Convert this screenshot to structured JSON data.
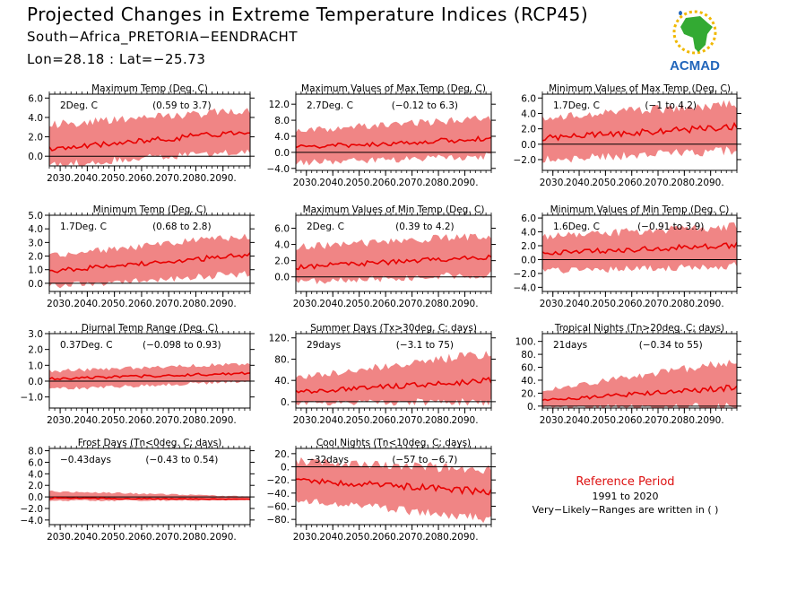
{
  "header": {
    "title": "Projected Changes in Extreme Temperature Indices (RCP45)",
    "subtitle": "South−Africa_PRETORIA−EENDRACHT",
    "coords": "Lon=28.18 : Lat=−25.73"
  },
  "logo": {
    "text": "ACMAD",
    "icon": "africa-map-icon"
  },
  "reference": {
    "title": "Reference Period",
    "years": "1991 to 2020",
    "note": "Very−Likely−Ranges are written in ( )"
  },
  "colors": {
    "band": "#f08585",
    "line": "#e80000",
    "accent": "#dd1111",
    "logo_blue": "#2266bb",
    "logo_green": "#33aa33",
    "logo_yellow": "#f0b800"
  },
  "chart_data": [
    {
      "type": "area",
      "title": "Maximum Temp (Deg. C)",
      "value_text": "2Deg. C",
      "range_text": "(0.59 to 3.7)",
      "xticks": [
        "2030.",
        "2040.",
        "2050.",
        "2060.",
        "2070.",
        "2080.",
        "2090."
      ],
      "xlim": [
        2026,
        2100
      ],
      "yticks": [
        "0.0",
        "2.0",
        "4.0",
        "6.0"
      ],
      "ylim": [
        -1.0,
        6.4
      ],
      "series": [
        {
          "start": 0.7,
          "end": 2.6,
          "lower_start": -0.5,
          "lower_end": 1.0,
          "upper_start": 2.8,
          "upper_end": 4.3
        }
      ]
    },
    {
      "type": "area",
      "title": "Maximum Values of Max Temp (Deg. C)",
      "value_text": "2.7Deg. C",
      "range_text": "(−0.12 to 6.3)",
      "xticks": [
        "2030.",
        "2040.",
        "2050.",
        "2060.",
        "2070.",
        "2080.",
        "2090."
      ],
      "xlim": [
        2026,
        2100
      ],
      "yticks": [
        "−4.0",
        "0.0",
        "4.0",
        "8.0",
        "12.0"
      ],
      "ylim": [
        -4.5,
        14.5
      ],
      "series": [
        {
          "start": 1.2,
          "end": 3.4,
          "lower_start": -1.8,
          "lower_end": 0.0,
          "upper_start": 4.5,
          "upper_end": 7.5
        }
      ]
    },
    {
      "type": "area",
      "title": "Minimum Values of Max Temp (Deg. C)",
      "value_text": "1.7Deg. C",
      "range_text": "(−1 to 4.2)",
      "xticks": [
        "2030.",
        "2040.",
        "2050.",
        "2060.",
        "2070.",
        "2080.",
        "2090."
      ],
      "xlim": [
        2026,
        2100
      ],
      "yticks": [
        "−2.0",
        "0.0",
        "2.0",
        "4.0",
        "6.0"
      ],
      "ylim": [
        -3.4,
        6.5
      ],
      "series": [
        {
          "start": 0.8,
          "end": 2.3,
          "lower_start": -1.5,
          "lower_end": -0.2,
          "upper_start": 2.8,
          "upper_end": 4.6
        }
      ]
    },
    {
      "type": "area",
      "title": "Minimum Temp (Deg. C)",
      "value_text": "1.7Deg. C",
      "range_text": "(0.68 to 2.8)",
      "xticks": [
        "2030.",
        "2040.",
        "2050.",
        "2060.",
        "2070.",
        "2080.",
        "2090."
      ],
      "xlim": [
        2026,
        2100
      ],
      "yticks": [
        "0.0",
        "1.0",
        "2.0",
        "3.0",
        "4.0",
        "5.0"
      ],
      "ylim": [
        -0.6,
        5.0
      ],
      "series": [
        {
          "start": 0.9,
          "end": 2.1,
          "lower_start": 0.0,
          "lower_end": 1.0,
          "upper_start": 1.8,
          "upper_end": 3.2
        }
      ]
    },
    {
      "type": "area",
      "title": "Maximum Values of Min Temp (Deg. C)",
      "value_text": "2Deg. C",
      "range_text": "(0.39 to 4.2)",
      "xticks": [
        "2030.",
        "2040.",
        "2050.",
        "2060.",
        "2070.",
        "2080.",
        "2090."
      ],
      "xlim": [
        2026,
        2100
      ],
      "yticks": [
        "0.0",
        "2.0",
        "4.0",
        "6.0"
      ],
      "ylim": [
        -1.8,
        7.6
      ],
      "series": [
        {
          "start": 1.2,
          "end": 2.5,
          "lower_start": -0.2,
          "lower_end": 0.8,
          "upper_start": 3.2,
          "upper_end": 4.6
        }
      ]
    },
    {
      "type": "area",
      "title": "Minimum Values of Min Temp (Deg. C)",
      "value_text": "1.6Deg. C",
      "range_text": "(−0.91 to 3.9)",
      "xticks": [
        "2030.",
        "2040.",
        "2050.",
        "2060.",
        "2070.",
        "2080.",
        "2090."
      ],
      "xlim": [
        2026,
        2100
      ],
      "yticks": [
        "−4.0",
        "−2.0",
        "0.0",
        "2.0",
        "4.0",
        "6.0"
      ],
      "ylim": [
        -4.6,
        6.4
      ],
      "series": [
        {
          "start": 0.9,
          "end": 2.1,
          "lower_start": -1.2,
          "lower_end": -0.3,
          "upper_start": 2.8,
          "upper_end": 4.2
        }
      ]
    },
    {
      "type": "area",
      "title": "Diurnal Temp Range (Deg. C)",
      "value_text": "0.37Deg. C",
      "range_text": "(−0.098 to 0.93)",
      "xticks": [
        "2030.",
        "2040.",
        "2050.",
        "2060.",
        "2070.",
        "2080.",
        "2090."
      ],
      "xlim": [
        2026,
        2100
      ],
      "yticks": [
        "−1.0",
        "0.0",
        "1.0",
        "2.0",
        "3.0"
      ],
      "ylim": [
        -1.7,
        3.0
      ],
      "series": [
        {
          "start": 0.15,
          "end": 0.5,
          "lower_start": -0.4,
          "lower_end": 0.1,
          "upper_start": 0.5,
          "upper_end": 1.0
        }
      ]
    },
    {
      "type": "area",
      "title": "Summer Days (Tx>30deg. C; days)",
      "value_text": "29days",
      "range_text": "(−3.1 to 75)",
      "xticks": [
        "2030.",
        "2040.",
        "2050.",
        "2060.",
        "2070.",
        "2080.",
        "2090."
      ],
      "xlim": [
        2026,
        2100
      ],
      "yticks": [
        "0.",
        "40.",
        "80.",
        "120."
      ],
      "ylim": [
        -12,
        128
      ],
      "series": [
        {
          "start": 18,
          "end": 40,
          "lower_start": 2,
          "lower_end": 10,
          "upper_start": 40,
          "upper_end": 82
        }
      ]
    },
    {
      "type": "area",
      "title": "Tropical Nights (Tn>20deg. C; days)",
      "value_text": "21days",
      "range_text": "(−0.34 to 55)",
      "xticks": [
        "2030.",
        "2040.",
        "2050.",
        "2060.",
        "2070.",
        "2080.",
        "2090."
      ],
      "xlim": [
        2026,
        2100
      ],
      "yticks": [
        "0.",
        "20.",
        "40.",
        "60.",
        "80.",
        "100."
      ],
      "ylim": [
        -3,
        112
      ],
      "series": [
        {
          "start": 9,
          "end": 29,
          "lower_start": 1,
          "lower_end": 6,
          "upper_start": 22,
          "upper_end": 62
        }
      ]
    },
    {
      "type": "area",
      "title": "Frost Days (Tn<0deg. C; days)",
      "value_text": "−0.43days",
      "range_text": "(−0.43 to 0.54)",
      "xticks": [
        "2030.",
        "2040.",
        "2050.",
        "2060.",
        "2070.",
        "2080.",
        "2090."
      ],
      "xlim": [
        2026,
        2100
      ],
      "yticks": [
        "−4.0",
        "−2.0",
        "0.0",
        "2.0",
        "4.0",
        "6.0",
        "8.0"
      ],
      "ylim": [
        -4.8,
        8.4
      ],
      "series": [
        {
          "start": -0.2,
          "end": -0.4,
          "lower_start": -0.5,
          "lower_end": -0.5,
          "upper_start": 0.8,
          "upper_end": 0.0
        }
      ]
    },
    {
      "type": "area",
      "title": "Cool Nights (Tn<10deg. C; days)",
      "value_text": "−32days",
      "range_text": "(−57 to −6.7)",
      "xticks": [
        "2030.",
        "2040.",
        "2050.",
        "2060.",
        "2070.",
        "2080.",
        "2090."
      ],
      "xlim": [
        2026,
        2100
      ],
      "yticks": [
        "−80.",
        "−60.",
        "−40.",
        "−20.",
        "0.",
        "20."
      ],
      "ylim": [
        -88,
        28
      ],
      "series": [
        {
          "start": -20,
          "end": -38,
          "lower_start": -45,
          "lower_end": -72,
          "upper_start": 2,
          "upper_end": -12
        }
      ]
    }
  ]
}
